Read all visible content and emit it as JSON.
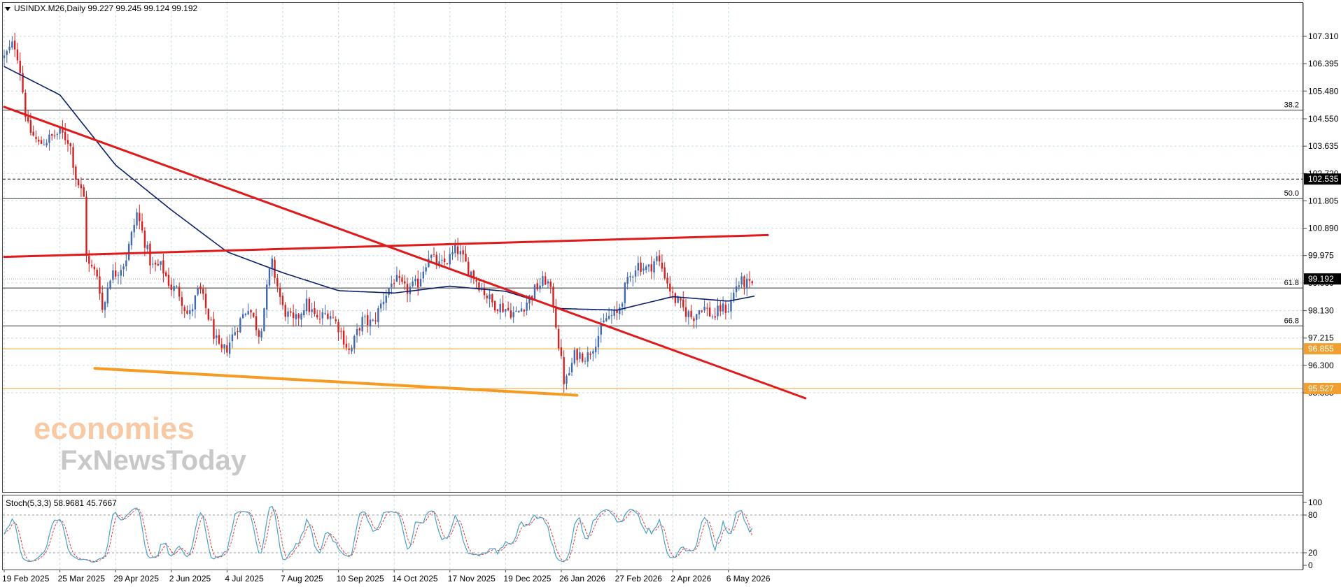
{
  "header": {
    "symbol_text": "USINDX.M26,Daily  99.227 99.245 99.124 99.192",
    "collapse_icon": "triangle-down-icon"
  },
  "watermark": {
    "line1": "economies",
    "line2": "FxNewsToday",
    "color1": "#f7c9a4",
    "color2": "#c8c8c8"
  },
  "colors": {
    "bull": "#4169b0",
    "bear": "#d62020",
    "ma": "#0a1e6b",
    "trend": "#e01a1a",
    "support": "#f59b22",
    "orange_level": "#f0a030",
    "stoch_main": "#4aa0c8",
    "stoch_signal": "#e03a3a",
    "grid": "#c8dce6"
  },
  "price_axis": {
    "labels": [
      "107.310",
      "106.395",
      "105.480",
      "104.550",
      "103.635",
      "102.720",
      "101.805",
      "100.890",
      "99.975",
      "99.060",
      "98.130",
      "97.215",
      "96.300",
      "95.385"
    ],
    "current_price": "99.192",
    "tags": [
      {
        "name": "dashed-level",
        "text": "102.535",
        "bg": "#000000"
      },
      {
        "name": "orange-level-upper",
        "text": "96.855",
        "bg": "#f0a030"
      },
      {
        "name": "orange-level-lower",
        "text": "95.527",
        "bg": "#f0a030"
      }
    ]
  },
  "fib_levels": [
    {
      "label": "38.2",
      "price": 104.84
    },
    {
      "label": "50.0",
      "price": 101.88
    },
    {
      "label": "61.8",
      "price": 98.89
    },
    {
      "label": "66.8",
      "price": 97.62
    }
  ],
  "time_axis": {
    "labels": [
      "19 Feb 2025",
      "25 Mar 2025",
      "29 Apr 2025",
      "2 Jun 2025",
      "4 Jul 2025",
      "7 Aug 2025",
      "10 Sep 2025",
      "14 Oct 2025",
      "17 Nov 2025",
      "19 Dec 2025",
      "26 Jan 2026",
      "27 Feb 2026",
      "2 Apr 2026",
      "6 May 2026"
    ]
  },
  "stoch": {
    "label": "Stoch(5,3,3) 58.9681 45.7667",
    "levels": [
      "100",
      "80",
      "20",
      "0"
    ]
  },
  "chart_data": {
    "type": "candlestick",
    "title": "USINDX.M26,Daily",
    "last_ohlc": {
      "open": 99.227,
      "high": 99.245,
      "low": 99.124,
      "close": 99.192
    },
    "ylim": [
      95.08,
      108.0
    ],
    "x_range": [
      "19 Feb 2025",
      "6 May 2026"
    ],
    "close_keypoints": [
      {
        "date": "19 Feb 2025",
        "close": 106.6
      },
      {
        "date": "25 Feb 2025",
        "close": 107.1
      },
      {
        "date": "28 Feb 2025",
        "close": 106.5
      },
      {
        "date": "5 Mar 2025",
        "close": 104.3
      },
      {
        "date": "12 Mar 2025",
        "close": 103.7
      },
      {
        "date": "19 Mar 2025",
        "close": 103.9
      },
      {
        "date": "25 Mar 2025",
        "close": 104.1
      },
      {
        "date": "31 Mar 2025",
        "close": 103.8
      },
      {
        "date": "4 Apr 2025",
        "close": 102.6
      },
      {
        "date": "9 Apr 2025",
        "close": 101.9
      },
      {
        "date": "11 Apr 2025",
        "close": 99.7
      },
      {
        "date": "18 Apr 2025",
        "close": 99.3
      },
      {
        "date": "21 Apr 2025",
        "close": 98.0
      },
      {
        "date": "25 Apr 2025",
        "close": 99.3
      },
      {
        "date": "29 Apr 2025",
        "close": 99.4
      },
      {
        "date": "5 May 2025",
        "close": 99.8
      },
      {
        "date": "12 May 2025",
        "close": 101.4
      },
      {
        "date": "16 May 2025",
        "close": 100.6
      },
      {
        "date": "21 May 2025",
        "close": 99.6
      },
      {
        "date": "27 May 2025",
        "close": 99.6
      },
      {
        "date": "2 Jun 2025",
        "close": 98.9
      },
      {
        "date": "6 Jun 2025",
        "close": 98.8
      },
      {
        "date": "12 Jun 2025",
        "close": 97.9
      },
      {
        "date": "18 Jun 2025",
        "close": 98.9
      },
      {
        "date": "24 Jun 2025",
        "close": 97.8
      },
      {
        "date": "30 Jun 2025",
        "close": 96.7
      },
      {
        "date": "4 Jul 2025",
        "close": 96.9
      },
      {
        "date": "10 Jul 2025",
        "close": 97.6
      },
      {
        "date": "17 Jul 2025",
        "close": 98.3
      },
      {
        "date": "24 Jul 2025",
        "close": 97.3
      },
      {
        "date": "31 Jul 2025",
        "close": 99.8
      },
      {
        "date": "7 Aug 2025",
        "close": 98.2
      },
      {
        "date": "14 Aug 2025",
        "close": 97.7
      },
      {
        "date": "21 Aug 2025",
        "close": 98.4
      },
      {
        "date": "28 Aug 2025",
        "close": 97.8
      },
      {
        "date": "4 Sep 2025",
        "close": 98.1
      },
      {
        "date": "10 Sep 2025",
        "close": 97.6
      },
      {
        "date": "17 Sep 2025",
        "close": 96.7
      },
      {
        "date": "24 Sep 2025",
        "close": 97.8
      },
      {
        "date": "1 Oct 2025",
        "close": 97.7
      },
      {
        "date": "8 Oct 2025",
        "close": 98.6
      },
      {
        "date": "14 Oct 2025",
        "close": 99.2
      },
      {
        "date": "21 Oct 2025",
        "close": 98.8
      },
      {
        "date": "28 Oct 2025",
        "close": 99.0
      },
      {
        "date": "4 Nov 2025",
        "close": 100.0
      },
      {
        "date": "11 Nov 2025",
        "close": 99.6
      },
      {
        "date": "17 Nov 2025",
        "close": 99.9
      },
      {
        "date": "21 Nov 2025",
        "close": 100.2
      },
      {
        "date": "27 Nov 2025",
        "close": 99.6
      },
      {
        "date": "4 Dec 2025",
        "close": 99.0
      },
      {
        "date": "11 Dec 2025",
        "close": 98.4
      },
      {
        "date": "19 Dec 2025",
        "close": 98.2
      },
      {
        "date": "26 Dec 2025",
        "close": 98.0
      },
      {
        "date": "2 Jan 2026",
        "close": 98.4
      },
      {
        "date": "9 Jan 2026",
        "close": 98.9
      },
      {
        "date": "16 Jan 2026",
        "close": 99.2
      },
      {
        "date": "21 Jan 2026",
        "close": 98.3
      },
      {
        "date": "23 Jan 2026",
        "close": 97.4
      },
      {
        "date": "26 Jan 2026",
        "close": 96.4
      },
      {
        "date": "28 Jan 2026",
        "close": 95.6
      },
      {
        "date": "3 Feb 2026",
        "close": 96.7
      },
      {
        "date": "10 Feb 2026",
        "close": 96.6
      },
      {
        "date": "17 Feb 2026",
        "close": 97.4
      },
      {
        "date": "21 Feb 2026",
        "close": 97.9
      },
      {
        "date": "27 Feb 2026",
        "close": 98.0
      },
      {
        "date": "4 Mar 2026",
        "close": 98.9
      },
      {
        "date": "11 Mar 2026",
        "close": 99.7
      },
      {
        "date": "18 Mar 2026",
        "close": 99.5
      },
      {
        "date": "23 Mar 2026",
        "close": 99.9
      },
      {
        "date": "27 Mar 2026",
        "close": 99.5
      },
      {
        "date": "2 Apr 2026",
        "close": 98.6
      },
      {
        "date": "8 Apr 2026",
        "close": 98.2
      },
      {
        "date": "14 Apr 2026",
        "close": 97.9
      },
      {
        "date": "20 Apr 2026",
        "close": 98.3
      },
      {
        "date": "27 Apr 2026",
        "close": 97.9
      },
      {
        "date": "1 May 2026",
        "close": 98.2
      },
      {
        "date": "6 May 2026",
        "close": 98.2
      },
      {
        "date": "11 May 2026",
        "close": 99.0
      },
      {
        "date": "15 May 2026",
        "close": 99.1
      },
      {
        "date": "20 May 2026",
        "close": 98.9
      },
      {
        "date": "22 May 2026",
        "close": 99.19
      }
    ],
    "moving_average_keypoints": [
      {
        "date": "19 Feb 2025",
        "value": 106.3
      },
      {
        "date": "25 Mar 2025",
        "value": 105.35
      },
      {
        "date": "29 Apr 2025",
        "value": 103.0
      },
      {
        "date": "2 Jun 2025",
        "value": 101.5
      },
      {
        "date": "4 Jul 2025",
        "value": 100.1
      },
      {
        "date": "7 Aug 2025",
        "value": 99.4
      },
      {
        "date": "10 Sep 2025",
        "value": 98.8
      },
      {
        "date": "14 Oct 2025",
        "value": 98.72
      },
      {
        "date": "17 Nov 2025",
        "value": 98.95
      },
      {
        "date": "19 Dec 2025",
        "value": 98.78
      },
      {
        "date": "26 Jan 2026",
        "value": 98.2
      },
      {
        "date": "27 Feb 2026",
        "value": 98.15
      },
      {
        "date": "2 Apr 2026",
        "value": 98.6
      },
      {
        "date": "6 May 2026",
        "value": 98.45
      },
      {
        "date": "22 May 2026",
        "value": 98.62
      }
    ],
    "trend_lines": [
      {
        "name": "descending-resistance",
        "color": "#e01a1a",
        "from": {
          "date": "19 Feb 2025",
          "price": 104.95
        },
        "to": {
          "date": "22 Jun 2026",
          "price": 95.2
        }
      },
      {
        "name": "upper-channel",
        "color": "#e01a1a",
        "from": {
          "date": "19 Feb 2025",
          "price": 99.93
        },
        "to": {
          "date": "30 May 2026",
          "price": 100.66
        }
      },
      {
        "name": "support-line",
        "color": "#f59b22",
        "from": {
          "date": "16 Apr 2025",
          "price": 96.2
        },
        "to": {
          "date": "4 Feb 2026",
          "price": 95.3
        }
      }
    ],
    "horizontal_levels": [
      102.535,
      96.855,
      95.527
    ],
    "stochastic": {
      "main": 58.9681,
      "signal": 45.7667,
      "ylim": [
        0,
        100
      ],
      "levels": [
        20,
        80
      ]
    }
  }
}
